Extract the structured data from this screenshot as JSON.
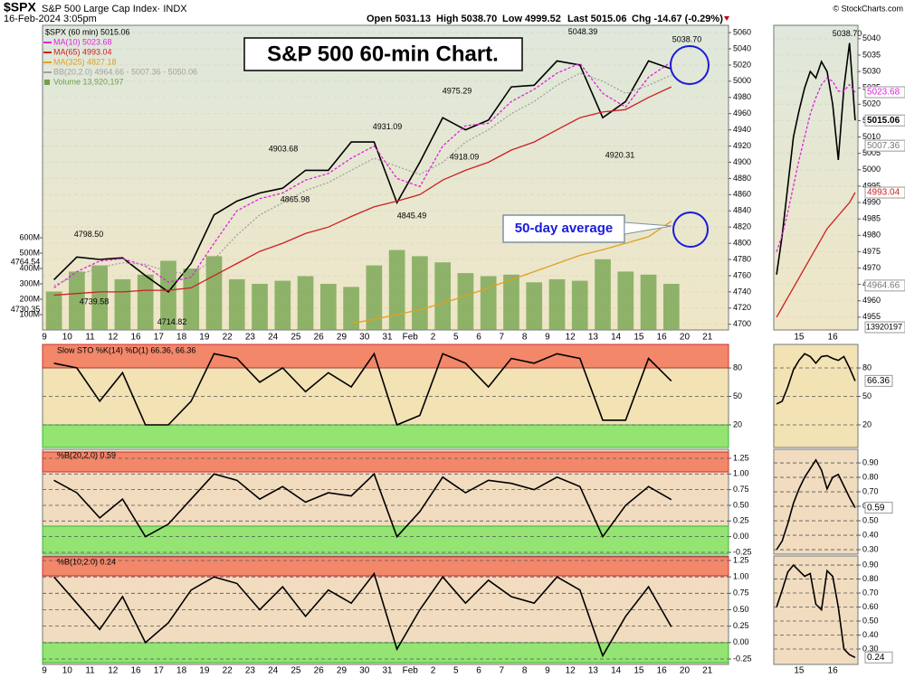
{
  "header": {
    "symbol": "$SPX",
    "name": "S&P 500 Large Cap Index· INDX",
    "date": "16-Feb-2024 3:05pm",
    "quote": [
      "Open 5031.13",
      "High 5038.70",
      "Low 4999.52",
      "Last 5015.06",
      "Chg -14.67 (-0.29%)"
    ],
    "copyright": "© StockCharts.com"
  },
  "chart_data": [
    {
      "type": "line",
      "title": "S&P 500 60-min Chart.",
      "annotation": "50-day average",
      "categories": [
        "9",
        "10",
        "11",
        "12",
        "16",
        "17",
        "18",
        "19",
        "22",
        "23",
        "24",
        "25",
        "26",
        "29",
        "30",
        "31",
        "Feb",
        "2",
        "5",
        "6",
        "7",
        "8",
        "9",
        "12",
        "13",
        "14",
        "15",
        "16",
        "20",
        "21"
      ],
      "series": [
        {
          "name": "$SPX (60 min) 5015.06",
          "color": "#000000",
          "values": [
            4755,
            4783,
            4780,
            4782,
            4760,
            4740,
            4775,
            4835,
            4852,
            4862,
            4868,
            4890,
            4890,
            4925,
            4925,
            4850,
            4900,
            4955,
            4940,
            4952,
            4993,
            4995,
            5025,
            5020,
            4955,
            4975,
            5025,
            5015.06,
            null,
            null
          ]
        },
        {
          "name": "MA(10) 5023.68",
          "color": "#e020e0",
          "values": [
            4745,
            4765,
            4778,
            4781,
            4772,
            4752,
            4758,
            4800,
            4840,
            4855,
            4862,
            4878,
            4886,
            4905,
            4920,
            4880,
            4870,
            4920,
            4945,
            4948,
            4975,
            4990,
            5010,
            5022,
            4985,
            4968,
            5005,
            5023.68,
            null,
            null
          ]
        },
        {
          "name": "MA(65) 4993.04",
          "color": "#cc2020",
          "values": [
            4736,
            4738,
            4740,
            4740,
            4742,
            4742,
            4745,
            4760,
            4775,
            4790,
            4800,
            4812,
            4820,
            4833,
            4845,
            4852,
            4860,
            4878,
            4890,
            4900,
            4915,
            4925,
            4940,
            4955,
            4962,
            4965,
            4980,
            4993.04,
            null,
            null
          ]
        },
        {
          "name": "MA(325) 4827.18",
          "color": "#e0a020",
          "values": [
            null,
            null,
            null,
            null,
            null,
            null,
            null,
            null,
            null,
            null,
            null,
            null,
            null,
            4701,
            4706,
            4712,
            4718,
            4726,
            4735,
            4745,
            4755,
            4765,
            4775,
            4785,
            4792,
            4800,
            4808,
            4827.18,
            null,
            null
          ]
        },
        {
          "name": "BB(20,2.0) 4964.66 - 5007.36 - 5050.06",
          "color": "#a0a0a0",
          "values": [
            4748,
            4760,
            4770,
            4776,
            4774,
            4765,
            4762,
            4780,
            4810,
            4835,
            4850,
            4865,
            4875,
            4890,
            4905,
            4895,
            4885,
            4900,
            4925,
            4940,
            4960,
            4975,
            4995,
            5010,
            5000,
            4985,
            4995,
            5007.36,
            null,
            null
          ]
        }
      ],
      "bars": {
        "name": "Volume 13,920,197",
        "color": "#6fa04a",
        "axis": "y2",
        "values": [
          250000000,
          380000000,
          420000000,
          330000000,
          360000000,
          450000000,
          400000000,
          480000000,
          330000000,
          300000000,
          320000000,
          350000000,
          300000000,
          280000000,
          420000000,
          520000000,
          480000000,
          440000000,
          370000000,
          350000000,
          360000000,
          310000000,
          330000000,
          320000000,
          460000000,
          380000000,
          360000000,
          300000000,
          null,
          null
        ]
      },
      "ylim": [
        4693,
        5069
      ],
      "yticks": [
        4700,
        4720,
        4740,
        4760,
        4780,
        4800,
        4820,
        4840,
        4860,
        4880,
        4900,
        4920,
        4940,
        4960,
        4980,
        5000,
        5020,
        5040,
        5060
      ],
      "y2lim": [
        0,
        1982000000
      ],
      "y2ticks": [
        {
          "value": 100000000,
          "label": "100M"
        },
        {
          "value": 200000000,
          "label": "200M"
        },
        {
          "value": 300000000,
          "label": "300M"
        },
        {
          "value": 400000000,
          "label": "400M"
        },
        {
          "value": 500000000,
          "label": "500M"
        },
        {
          "value": 600000000,
          "label": "600M"
        }
      ],
      "price_labels": [
        {
          "value": 4764.54,
          "label": "4764.54"
        },
        {
          "value": 4798.5,
          "label": "4798.50"
        },
        {
          "value": 4739.58,
          "label": "4739.58"
        },
        {
          "value": 4730.35,
          "label": "4730.35"
        },
        {
          "value": 4714.82,
          "label": "4714.82"
        },
        {
          "value": 4903.68,
          "label": "4903.68"
        },
        {
          "value": 4865.98,
          "label": "4865.98"
        },
        {
          "value": 4931.09,
          "label": "4931.09"
        },
        {
          "value": 4845.49,
          "label": "4845.49"
        },
        {
          "value": 4918.09,
          "label": "4918.09"
        },
        {
          "value": 4975.29,
          "label": "4975.29"
        },
        {
          "value": 5048.39,
          "label": "5048.39"
        },
        {
          "value": 4920.31,
          "label": "4920.31"
        },
        {
          "value": 5038.7,
          "label": "5038.70"
        }
      ]
    },
    {
      "type": "line",
      "title": "Slow STO %K(14) %D(1) 66.36, 66.36",
      "ylim": [
        -3.8,
        104.8
      ],
      "yticks": [
        80,
        50,
        20
      ],
      "series": [
        {
          "color": "#000000",
          "values": [
            85,
            80,
            45,
            75,
            20,
            20,
            45,
            95,
            90,
            65,
            80,
            55,
            75,
            60,
            95,
            20,
            30,
            95,
            85,
            60,
            90,
            85,
            95,
            90,
            25,
            25,
            90,
            66.36,
            null,
            null
          ]
        }
      ]
    },
    {
      "type": "line",
      "title": "%B(20,2.0) 0.59",
      "ylim": [
        -0.279,
        1.394
      ],
      "yticks": [
        1.25,
        {
          "value": 1,
          "label": "1.00"
        },
        0.75,
        {
          "value": 0.5,
          "label": "0.50"
        },
        0.25,
        {
          "value": 0,
          "label": "0.00"
        },
        -0.25
      ],
      "series": [
        {
          "color": "#000000",
          "values": [
            0.9,
            0.7,
            0.3,
            0.6,
            0,
            0.2,
            0.6,
            1.0,
            0.9,
            0.6,
            0.8,
            0.55,
            0.7,
            0.65,
            1.0,
            0,
            0.4,
            0.95,
            0.7,
            0.9,
            0.85,
            0.75,
            0.95,
            0.8,
            0,
            0.5,
            0.8,
            0.59,
            null,
            null
          ]
        }
      ]
    },
    {
      "type": "line",
      "title": "%B(10,2.0) 0.24",
      "ylim": [
        -0.333,
        1.319
      ],
      "yticks": [
        1.25,
        {
          "value": 1,
          "label": "1.00"
        },
        0.75,
        {
          "value": 0.5,
          "label": "0.50"
        },
        0.25,
        {
          "value": 0,
          "label": "0.00"
        },
        -0.25
      ],
      "series": [
        {
          "color": "#000000",
          "values": [
            1.0,
            0.6,
            0.2,
            0.7,
            0,
            0.3,
            0.8,
            1.0,
            0.9,
            0.5,
            0.85,
            0.4,
            0.8,
            0.6,
            1.05,
            -0.1,
            0.5,
            1.0,
            0.6,
            0.95,
            0.7,
            0.6,
            1.0,
            0.8,
            -0.2,
            0.4,
            0.85,
            0.24,
            null,
            null
          ]
        }
      ]
    },
    {
      "type": "line",
      "categories": [
        null,
        null,
        null,
        null,
        "15",
        null,
        null,
        null,
        null,
        null,
        "16",
        null,
        null,
        null,
        null
      ],
      "series": [
        {
          "color": "#000000",
          "values": [
            4968,
            4980,
            4995,
            5010,
            5018,
            5025,
            5030,
            5028,
            5033,
            5030,
            5020,
            5003,
            5025,
            5038.7,
            5015.06
          ]
        },
        {
          "color": "#e020e0",
          "values": [
            4975,
            4980,
            4987,
            4995,
            5003,
            5010,
            5017,
            5022,
            5026,
            5028,
            5027,
            5024,
            5024,
            5026,
            5023.68
          ]
        },
        {
          "color": "#cc2020",
          "values": [
            4955,
            4958,
            4961,
            4964,
            4967,
            4970,
            4973,
            4976,
            4979,
            4982,
            4984,
            4986,
            4988,
            4990,
            4993.04
          ]
        }
      ],
      "ylim": [
        4951.1,
        5044.1
      ],
      "yticks": [
        4955,
        4960,
        4965,
        4970,
        4975,
        4980,
        4985,
        4990,
        4995,
        5000,
        5005,
        5010,
        5015,
        5020,
        5025,
        5030,
        5035,
        5040
      ],
      "high_label": {
        "value": 5038.7,
        "label": "5038.70"
      },
      "axis_labels": [
        {
          "value": 5023.68,
          "color": "#e020e0"
        },
        {
          "value": 5015.06,
          "color": "#000000"
        },
        {
          "value": 5007.36,
          "color": "#777777"
        },
        {
          "value": 4993.04,
          "color": "#cc2020"
        },
        {
          "value": 4964.66,
          "color": "#777777"
        }
      ],
      "volume_label": 13920197
    },
    {
      "type": "line",
      "ylim": [
        -3.8,
        104.8
      ],
      "yticks": [
        80,
        50,
        20
      ],
      "last_label": 66.36,
      "series": [
        {
          "color": "#000000",
          "values": [
            42,
            45,
            60,
            78,
            88,
            95,
            92,
            85,
            92,
            93,
            90,
            88,
            92,
            80,
            66.36
          ]
        }
      ]
    },
    {
      "type": "line",
      "ylim": [
        0.269,
        0.994
      ],
      "last_label": 0.59,
      "yticks": [
        {
          "value": 0.9,
          "label": "0.90"
        },
        {
          "value": 0.8,
          "label": "0.80"
        },
        {
          "value": 0.7,
          "label": "0.70"
        },
        {
          "value": 0.6,
          "label": "0.60"
        },
        {
          "value": 0.5,
          "label": "0.50"
        },
        {
          "value": 0.4,
          "label": "0.40"
        },
        {
          "value": 0.3,
          "label": "0.30"
        }
      ],
      "series": [
        {
          "color": "#000000",
          "values": [
            0.3,
            0.36,
            0.48,
            0.62,
            0.72,
            0.8,
            0.86,
            0.92,
            0.85,
            0.72,
            0.8,
            0.82,
            0.74,
            0.66,
            0.59
          ]
        }
      ]
    },
    {
      "type": "line",
      "ylim": [
        0.19,
        0.965
      ],
      "last_label": 0.24,
      "yticks": [
        {
          "value": 0.9,
          "label": "0.90"
        },
        {
          "value": 0.8,
          "label": "0.80"
        },
        {
          "value": 0.7,
          "label": "0.70"
        },
        {
          "value": 0.6,
          "label": "0.60"
        },
        {
          "value": 0.5,
          "label": "0.50"
        },
        {
          "value": 0.4,
          "label": "0.40"
        },
        {
          "value": 0.3,
          "label": "0.30"
        }
      ],
      "series": [
        {
          "color": "#000000",
          "values": [
            0.6,
            0.72,
            0.85,
            0.9,
            0.86,
            0.82,
            0.84,
            0.62,
            0.58,
            0.86,
            0.82,
            0.6,
            0.3,
            0.26,
            0.24
          ]
        }
      ]
    }
  ]
}
